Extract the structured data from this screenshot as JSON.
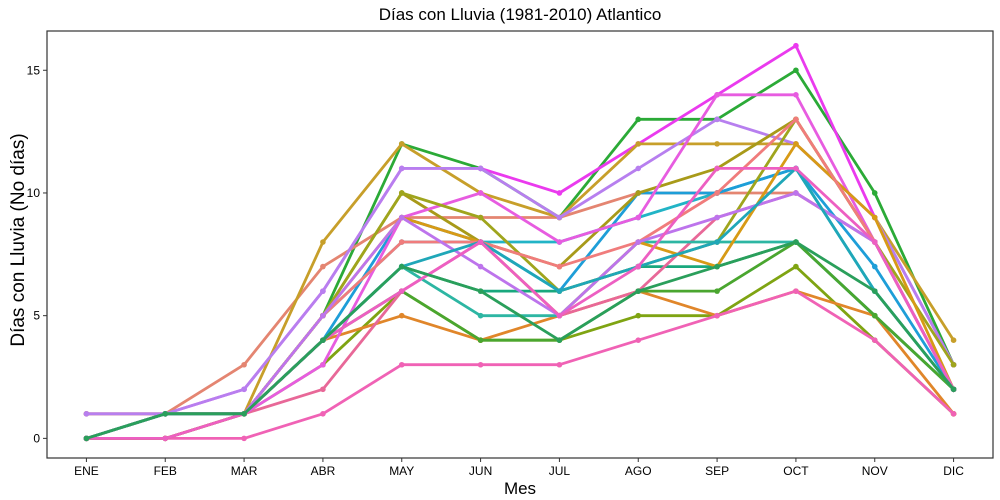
{
  "chart_data": {
    "type": "line",
    "title": "Días con Lluvia (1981-2010)  Atlantico",
    "xlabel": "Mes",
    "ylabel": "Días con Lluvia (No días)",
    "categories": [
      "ENE",
      "FEB",
      "MAR",
      "ABR",
      "MAY",
      "JUN",
      "JUL",
      "AGO",
      "SEP",
      "OCT",
      "NOV",
      "DIC"
    ],
    "y_ticks": [
      0,
      5,
      10,
      15
    ],
    "ylim": [
      -0.8,
      16.6
    ],
    "grid": false,
    "legend": "none",
    "series": [
      {
        "color": "#2BAA37",
        "values": [
          0,
          1,
          1,
          5,
          12,
          11,
          9,
          13,
          13,
          15,
          10,
          3
        ]
      },
      {
        "color": "#EA3AEE",
        "values": [
          1,
          1,
          2,
          6,
          11,
          11,
          10,
          12,
          14,
          16,
          9,
          3
        ]
      },
      {
        "color": "#E48571",
        "values": [
          0,
          1,
          3,
          7,
          9,
          9,
          9,
          10,
          10,
          10,
          8,
          2
        ]
      },
      {
        "color": "#C79F2A",
        "values": [
          1,
          1,
          1,
          8,
          12,
          10,
          9,
          12,
          12,
          12,
          9,
          4
        ]
      },
      {
        "color": "#B77FEF",
        "values": [
          1,
          1,
          2,
          6,
          11,
          11,
          9,
          11,
          13,
          12,
          9,
          3
        ]
      },
      {
        "color": "#22B4C6",
        "values": [
          0,
          1,
          1,
          5,
          8,
          8,
          8,
          9,
          10,
          11,
          6,
          2
        ]
      },
      {
        "color": "#19A87E",
        "values": [
          0,
          1,
          1,
          4,
          7,
          6,
          6,
          7,
          7,
          8,
          5,
          2
        ]
      },
      {
        "color": "#7FA412",
        "values": [
          0,
          0,
          1,
          3,
          6,
          4,
          4,
          5,
          5,
          7,
          4,
          1
        ]
      },
      {
        "color": "#E0862A",
        "values": [
          0,
          0,
          1,
          4,
          5,
          4,
          5,
          6,
          5,
          6,
          5,
          1
        ]
      },
      {
        "color": "#F062B5",
        "values": [
          0,
          0,
          0,
          1,
          3,
          3,
          3,
          4,
          5,
          6,
          4,
          1
        ]
      },
      {
        "color": "#E86898",
        "values": [
          0,
          0,
          1,
          2,
          6,
          8,
          5,
          6,
          9,
          10,
          8,
          2
        ]
      },
      {
        "color": "#1E9ED8",
        "values": [
          0,
          1,
          1,
          4,
          9,
          8,
          6,
          10,
          10,
          11,
          7,
          2
        ]
      },
      {
        "color": "#A89A19",
        "values": [
          0,
          1,
          1,
          5,
          10,
          8,
          7,
          10,
          11,
          13,
          8,
          2
        ]
      },
      {
        "color": "#E75CE0",
        "values": [
          0,
          0,
          1,
          3,
          9,
          10,
          8,
          9,
          14,
          14,
          8,
          2
        ]
      },
      {
        "color": "#2DB6A3",
        "values": [
          0,
          1,
          1,
          4,
          7,
          5,
          5,
          8,
          8,
          8,
          5,
          2
        ]
      },
      {
        "color": "#4AA62F",
        "values": [
          0,
          1,
          1,
          4,
          6,
          4,
          4,
          6,
          6,
          8,
          5,
          2
        ]
      },
      {
        "color": "#9FA51D",
        "values": [
          0,
          0,
          1,
          5,
          10,
          9,
          6,
          7,
          8,
          13,
          8,
          3
        ]
      },
      {
        "color": "#D79A16",
        "values": [
          0,
          1,
          1,
          5,
          9,
          8,
          5,
          8,
          7,
          12,
          9,
          2
        ]
      },
      {
        "color": "#F07C7C",
        "values": [
          0,
          1,
          1,
          5,
          8,
          8,
          7,
          8,
          10,
          13,
          8,
          2
        ]
      },
      {
        "color": "#BD74EC",
        "values": [
          0,
          1,
          1,
          5,
          9,
          7,
          5,
          8,
          9,
          10,
          8,
          2
        ]
      },
      {
        "color": "#1FA7B8",
        "values": [
          0,
          1,
          1,
          4,
          7,
          8,
          6,
          7,
          8,
          11,
          6,
          2
        ]
      },
      {
        "color": "#ED5FC2",
        "values": [
          0,
          0,
          1,
          4,
          6,
          8,
          5,
          7,
          11,
          11,
          8,
          2
        ]
      },
      {
        "color": "#2A9F5B",
        "values": [
          0,
          1,
          1,
          4,
          7,
          6,
          4,
          6,
          7,
          8,
          6,
          2
        ]
      }
    ]
  }
}
